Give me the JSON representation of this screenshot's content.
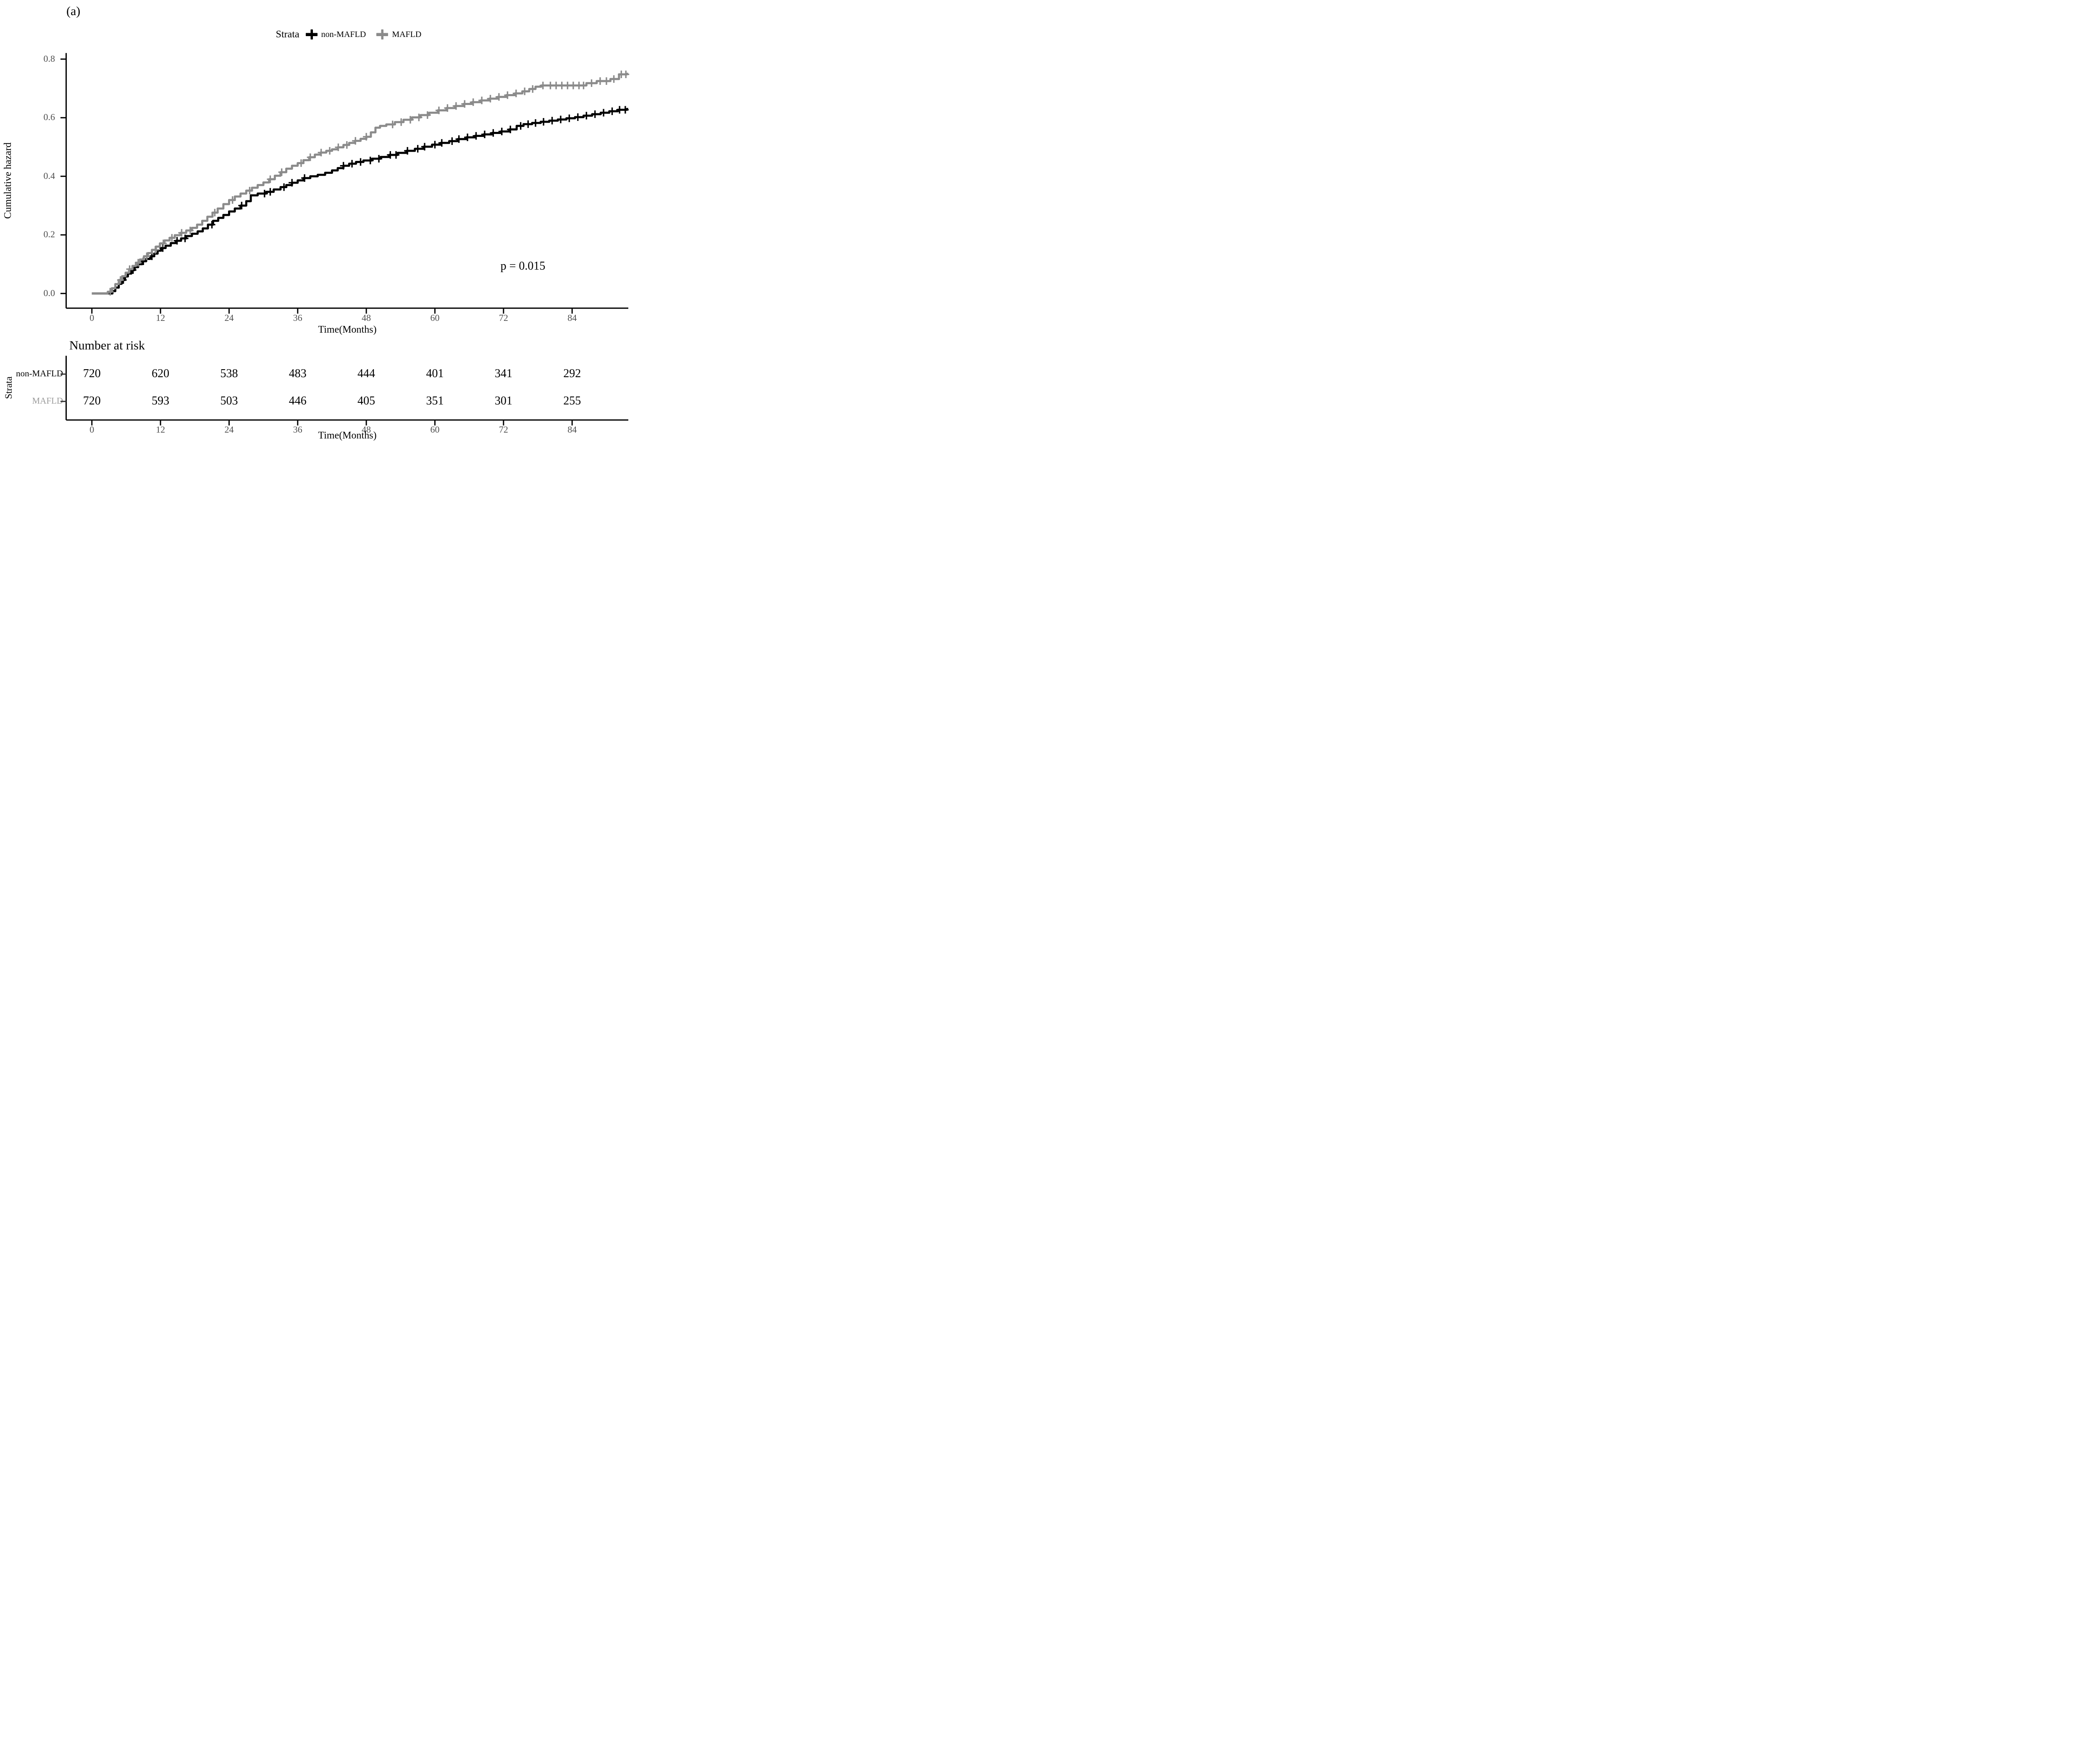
{
  "panel_label": "(a)",
  "colors": {
    "non_mafld": "#000000",
    "mafld": "#8B8B8B",
    "mafld_row_label": "#9C9C9C",
    "axis_tick_text": "#4d4d4d",
    "axis_line": "#000000"
  },
  "legend": {
    "title": "Strata",
    "items": [
      {
        "label": "non-MAFLD",
        "color": "#000000"
      },
      {
        "label": "MAFLD",
        "color": "#8B8B8B"
      }
    ]
  },
  "annotation": {
    "p_value": "p = 0.015"
  },
  "chart_data": {
    "type": "line",
    "subtype": "step-function-cumulative-hazard",
    "title": "",
    "xlabel": "Time(Months)",
    "ylabel": "Cumulative hazard",
    "x_ticks": [
      0,
      12,
      24,
      36,
      48,
      60,
      72,
      84
    ],
    "y_ticks": [
      "0.0",
      "0.2",
      "0.4",
      "0.6",
      "0.8"
    ],
    "y_tick_values": [
      0.0,
      0.2,
      0.4,
      0.6,
      0.8
    ],
    "xlim": [
      0,
      93.8
    ],
    "ylim": [
      0,
      0.82
    ],
    "grid": false,
    "legend_position": "top",
    "series": [
      {
        "name": "non-MAFLD",
        "color": "#000000",
        "steps": [
          [
            0,
            0
          ],
          [
            3.6,
            0.008
          ],
          [
            4.1,
            0.02
          ],
          [
            4.7,
            0.033
          ],
          [
            5.2,
            0.046
          ],
          [
            5.8,
            0.058
          ],
          [
            6.3,
            0.068
          ],
          [
            6.9,
            0.08
          ],
          [
            7.5,
            0.09
          ],
          [
            8.1,
            0.1
          ],
          [
            8.8,
            0.11
          ],
          [
            9.5,
            0.118
          ],
          [
            10.2,
            0.127
          ],
          [
            10.9,
            0.136
          ],
          [
            11.5,
            0.146
          ],
          [
            12.1,
            0.155
          ],
          [
            12.9,
            0.163
          ],
          [
            13.8,
            0.172
          ],
          [
            14.7,
            0.18
          ],
          [
            15.6,
            0.188
          ],
          [
            16.5,
            0.196
          ],
          [
            17.5,
            0.204
          ],
          [
            18.5,
            0.212
          ],
          [
            19.4,
            0.222
          ],
          [
            20.3,
            0.235
          ],
          [
            21.2,
            0.248
          ],
          [
            22.1,
            0.258
          ],
          [
            23,
            0.268
          ],
          [
            24,
            0.28
          ],
          [
            25,
            0.29
          ],
          [
            26,
            0.3
          ],
          [
            27,
            0.315
          ],
          [
            27.8,
            0.335
          ],
          [
            29,
            0.341
          ],
          [
            30.5,
            0.347
          ],
          [
            31.8,
            0.355
          ],
          [
            33,
            0.363
          ],
          [
            34,
            0.37
          ],
          [
            35,
            0.378
          ],
          [
            36,
            0.386
          ],
          [
            37,
            0.394
          ],
          [
            38.2,
            0.4
          ],
          [
            39.5,
            0.405
          ],
          [
            40.8,
            0.412
          ],
          [
            42,
            0.42
          ],
          [
            43,
            0.428
          ],
          [
            44,
            0.436
          ],
          [
            45,
            0.443
          ],
          [
            46.2,
            0.449
          ],
          [
            47.5,
            0.454
          ],
          [
            49,
            0.46
          ],
          [
            50.5,
            0.466
          ],
          [
            52,
            0.473
          ],
          [
            53.5,
            0.48
          ],
          [
            55,
            0.487
          ],
          [
            56.5,
            0.494
          ],
          [
            58,
            0.501
          ],
          [
            59.5,
            0.508
          ],
          [
            61,
            0.514
          ],
          [
            62.5,
            0.52
          ],
          [
            64,
            0.527
          ],
          [
            65.5,
            0.533
          ],
          [
            67,
            0.538
          ],
          [
            68.5,
            0.543
          ],
          [
            70,
            0.548
          ],
          [
            71.5,
            0.553
          ],
          [
            73,
            0.56
          ],
          [
            74.3,
            0.572
          ],
          [
            75.5,
            0.578
          ],
          [
            77,
            0.582
          ],
          [
            78.5,
            0.586
          ],
          [
            80,
            0.59
          ],
          [
            81.5,
            0.594
          ],
          [
            83,
            0.598
          ],
          [
            84.5,
            0.602
          ],
          [
            86,
            0.607
          ],
          [
            87.5,
            0.612
          ],
          [
            89,
            0.617
          ],
          [
            90.5,
            0.622
          ],
          [
            92,
            0.627
          ],
          [
            93.6,
            0.63
          ]
        ],
        "censor_times": [
          5.5,
          7.2,
          9,
          10.5,
          12.4,
          14.9,
          16.3,
          21,
          26.2,
          30.2,
          31.2,
          33.6,
          35,
          37.2,
          44,
          45.5,
          47,
          48.7,
          50.2,
          52.2,
          53.2,
          55.2,
          57,
          58.2,
          60,
          61.2,
          63,
          64.2,
          65.7,
          67.2,
          68.7,
          70.2,
          71.7,
          73.2,
          75,
          76.3,
          77.6,
          79,
          80.5,
          82,
          83.5,
          85,
          86.5,
          88,
          89.5,
          91,
          92.3,
          93.3
        ]
      },
      {
        "name": "MAFLD",
        "color": "#8B8B8B",
        "steps": [
          [
            0,
            0
          ],
          [
            2.8,
            0.006
          ],
          [
            3.5,
            0.018
          ],
          [
            4.1,
            0.032
          ],
          [
            4.7,
            0.046
          ],
          [
            5.3,
            0.059
          ],
          [
            5.9,
            0.071
          ],
          [
            6.5,
            0.083
          ],
          [
            7.1,
            0.094
          ],
          [
            7.7,
            0.105
          ],
          [
            8.4,
            0.116
          ],
          [
            9.1,
            0.127
          ],
          [
            9.8,
            0.138
          ],
          [
            10.5,
            0.149
          ],
          [
            11.2,
            0.16
          ],
          [
            11.9,
            0.171
          ],
          [
            12.7,
            0.181
          ],
          [
            13.6,
            0.19
          ],
          [
            14.5,
            0.199
          ],
          [
            15.5,
            0.207
          ],
          [
            16.5,
            0.215
          ],
          [
            17.5,
            0.224
          ],
          [
            18.4,
            0.235
          ],
          [
            19.3,
            0.248
          ],
          [
            20.2,
            0.262
          ],
          [
            21.1,
            0.276
          ],
          [
            22,
            0.29
          ],
          [
            23,
            0.305
          ],
          [
            24,
            0.319
          ],
          [
            25,
            0.331
          ],
          [
            26,
            0.341
          ],
          [
            27,
            0.351
          ],
          [
            28,
            0.361
          ],
          [
            29,
            0.37
          ],
          [
            30,
            0.379
          ],
          [
            31,
            0.39
          ],
          [
            32,
            0.402
          ],
          [
            33,
            0.414
          ],
          [
            34,
            0.426
          ],
          [
            35,
            0.436
          ],
          [
            36,
            0.445
          ],
          [
            37,
            0.455
          ],
          [
            38,
            0.465
          ],
          [
            39,
            0.474
          ],
          [
            40,
            0.481
          ],
          [
            41,
            0.487
          ],
          [
            42,
            0.492
          ],
          [
            43,
            0.499
          ],
          [
            44,
            0.507
          ],
          [
            45,
            0.514
          ],
          [
            46,
            0.521
          ],
          [
            47,
            0.528
          ],
          [
            48,
            0.535
          ],
          [
            48.8,
            0.55
          ],
          [
            49.6,
            0.566
          ],
          [
            50.4,
            0.572
          ],
          [
            51.5,
            0.577
          ],
          [
            53,
            0.585
          ],
          [
            54.5,
            0.593
          ],
          [
            56,
            0.601
          ],
          [
            57.5,
            0.609
          ],
          [
            59,
            0.617
          ],
          [
            60.5,
            0.625
          ],
          [
            62,
            0.633
          ],
          [
            63.5,
            0.64
          ],
          [
            65,
            0.647
          ],
          [
            66.5,
            0.653
          ],
          [
            68,
            0.659
          ],
          [
            69.5,
            0.665
          ],
          [
            71,
            0.671
          ],
          [
            72.5,
            0.677
          ],
          [
            74,
            0.683
          ],
          [
            75.3,
            0.69
          ],
          [
            76.5,
            0.698
          ],
          [
            77.6,
            0.706
          ],
          [
            78.6,
            0.71
          ],
          [
            86.5,
            0.718
          ],
          [
            88.3,
            0.725
          ],
          [
            90.7,
            0.732
          ],
          [
            92.2,
            0.748
          ],
          [
            93.6,
            0.75
          ]
        ],
        "censor_times": [
          3.2,
          5,
          6.6,
          8.1,
          9.6,
          11.1,
          12.5,
          14,
          15.7,
          17.2,
          21.5,
          24.6,
          27.6,
          31.2,
          33.2,
          36.6,
          38.2,
          40.1,
          41.6,
          43.1,
          44.6,
          46.1,
          48,
          52.6,
          54.1,
          55.7,
          57.2,
          58.7,
          60.7,
          62.2,
          63.7,
          65.2,
          66.7,
          68.2,
          69.7,
          71.2,
          72.7,
          74.2,
          75.7,
          77.1,
          78.9,
          80.2,
          81.2,
          82.2,
          83.2,
          84.2,
          85.2,
          86,
          87.4,
          88.9,
          90,
          91.3,
          92.6,
          93.4
        ]
      }
    ],
    "annotations": [
      {
        "text": "p = 0.015",
        "x": 78,
        "y": 0.1
      }
    ]
  },
  "risk_table": {
    "title": "Number at risk",
    "axis_label": "Strata",
    "times": [
      0,
      12,
      24,
      36,
      48,
      60,
      72,
      84
    ],
    "rows": [
      {
        "label": "non-MAFLD",
        "label_color": "#000000",
        "values": [
          720,
          620,
          538,
          483,
          444,
          401,
          341,
          292
        ]
      },
      {
        "label": "MAFLD",
        "label_color": "#9C9C9C",
        "values": [
          720,
          593,
          503,
          446,
          405,
          351,
          301,
          255
        ]
      }
    ],
    "x_axis": {
      "title": "Time(Months)",
      "ticks": [
        0,
        12,
        24,
        36,
        48,
        60,
        72,
        84
      ]
    }
  }
}
